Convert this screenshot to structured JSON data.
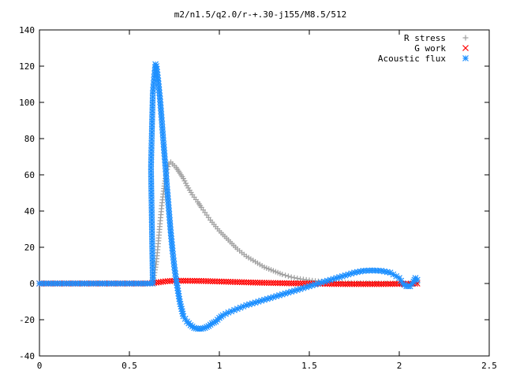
{
  "chart_data": {
    "type": "scatter",
    "title": "m2/n1.5/q2.0/r-+.30-j155/M8.5/512",
    "xlabel": "",
    "ylabel": "",
    "xlim": [
      0,
      2.5
    ],
    "ylim": [
      -40,
      140
    ],
    "xticks": [
      0,
      0.5,
      1,
      1.5,
      2,
      2.5
    ],
    "xtick_labels": [
      "0",
      "0.5",
      "1",
      "1.5",
      "2",
      "2.5"
    ],
    "yticks": [
      -40,
      -20,
      0,
      20,
      40,
      60,
      80,
      100,
      120,
      140
    ],
    "ytick_labels": [
      "-40",
      "-20",
      "0",
      "20",
      "40",
      "60",
      "80",
      "100",
      "120",
      "140"
    ],
    "grid": false,
    "legend_position": "top-right",
    "series": [
      {
        "name": "R stress",
        "color": "#a0a0a0",
        "marker": "plus",
        "points": [
          [
            0,
            0
          ],
          [
            0.05,
            0
          ],
          [
            0.1,
            0
          ],
          [
            0.15,
            0
          ],
          [
            0.2,
            0
          ],
          [
            0.25,
            0
          ],
          [
            0.3,
            0
          ],
          [
            0.35,
            0
          ],
          [
            0.4,
            0
          ],
          [
            0.45,
            0
          ],
          [
            0.5,
            0
          ],
          [
            0.55,
            0
          ],
          [
            0.6,
            0
          ],
          [
            0.63,
            0
          ],
          [
            0.64,
            6
          ],
          [
            0.65,
            12
          ],
          [
            0.66,
            22
          ],
          [
            0.67,
            33
          ],
          [
            0.68,
            43
          ],
          [
            0.69,
            51
          ],
          [
            0.7,
            58
          ],
          [
            0.71,
            63
          ],
          [
            0.72,
            66
          ],
          [
            0.73,
            67
          ],
          [
            0.74,
            66
          ],
          [
            0.76,
            64
          ],
          [
            0.78,
            61
          ],
          [
            0.8,
            58
          ],
          [
            0.82,
            54
          ],
          [
            0.85,
            49
          ],
          [
            0.88,
            45
          ],
          [
            0.9,
            42
          ],
          [
            0.95,
            35
          ],
          [
            1.0,
            29
          ],
          [
            1.05,
            24
          ],
          [
            1.1,
            19
          ],
          [
            1.15,
            15
          ],
          [
            1.2,
            12
          ],
          [
            1.25,
            9
          ],
          [
            1.3,
            7
          ],
          [
            1.35,
            5
          ],
          [
            1.4,
            3.5
          ],
          [
            1.45,
            2.5
          ],
          [
            1.5,
            1.8
          ],
          [
            1.55,
            1.2
          ],
          [
            1.6,
            0.8
          ],
          [
            1.7,
            0.4
          ],
          [
            1.8,
            0.2
          ],
          [
            1.9,
            0.1
          ],
          [
            2.0,
            0.05
          ],
          [
            2.1,
            0
          ]
        ]
      },
      {
        "name": "G work",
        "color": "#ff0000",
        "marker": "cross",
        "points": [
          [
            0,
            0
          ],
          [
            0.1,
            0
          ],
          [
            0.2,
            0
          ],
          [
            0.3,
            0
          ],
          [
            0.4,
            0
          ],
          [
            0.5,
            0
          ],
          [
            0.6,
            0
          ],
          [
            0.65,
            0.5
          ],
          [
            0.7,
            1.2
          ],
          [
            0.75,
            1.5
          ],
          [
            0.8,
            1.5
          ],
          [
            0.9,
            1.4
          ],
          [
            1.0,
            1.1
          ],
          [
            1.1,
            0.8
          ],
          [
            1.2,
            0.5
          ],
          [
            1.3,
            0.3
          ],
          [
            1.4,
            0.1
          ],
          [
            1.5,
            0
          ],
          [
            1.6,
            -0.2
          ],
          [
            1.7,
            -0.3
          ],
          [
            1.8,
            -0.3
          ],
          [
            1.9,
            -0.3
          ],
          [
            2.0,
            -0.2
          ],
          [
            2.05,
            -0.2
          ],
          [
            2.1,
            0
          ]
        ]
      },
      {
        "name": "Acoustic flux",
        "color": "#1e90ff",
        "marker": "star",
        "points": [
          [
            0,
            0
          ],
          [
            0.05,
            0
          ],
          [
            0.1,
            0
          ],
          [
            0.15,
            0
          ],
          [
            0.2,
            0
          ],
          [
            0.25,
            0
          ],
          [
            0.3,
            0
          ],
          [
            0.35,
            0
          ],
          [
            0.4,
            0
          ],
          [
            0.45,
            0
          ],
          [
            0.5,
            0
          ],
          [
            0.55,
            0
          ],
          [
            0.6,
            0
          ],
          [
            0.63,
            0
          ],
          [
            0.62,
            64
          ],
          [
            0.63,
            105
          ],
          [
            0.64,
            116
          ],
          [
            0.645,
            121
          ],
          [
            0.65,
            120
          ],
          [
            0.66,
            112
          ],
          [
            0.67,
            102
          ],
          [
            0.68,
            90
          ],
          [
            0.69,
            77
          ],
          [
            0.7,
            65
          ],
          [
            0.71,
            52
          ],
          [
            0.72,
            40
          ],
          [
            0.73,
            28
          ],
          [
            0.74,
            18
          ],
          [
            0.75,
            9
          ],
          [
            0.76,
            2
          ],
          [
            0.77,
            -4
          ],
          [
            0.78,
            -10
          ],
          [
            0.79,
            -14
          ],
          [
            0.8,
            -18
          ],
          [
            0.82,
            -21
          ],
          [
            0.84,
            -23
          ],
          [
            0.86,
            -24.5
          ],
          [
            0.88,
            -25
          ],
          [
            0.9,
            -25
          ],
          [
            0.92,
            -24.5
          ],
          [
            0.94,
            -23.5
          ],
          [
            0.96,
            -22
          ],
          [
            0.98,
            -21
          ],
          [
            1.0,
            -19
          ],
          [
            1.02,
            -17.5
          ],
          [
            1.05,
            -16
          ],
          [
            1.1,
            -14
          ],
          [
            1.15,
            -12
          ],
          [
            1.2,
            -10.5
          ],
          [
            1.25,
            -9
          ],
          [
            1.3,
            -7.5
          ],
          [
            1.35,
            -6
          ],
          [
            1.4,
            -4.5
          ],
          [
            1.45,
            -3
          ],
          [
            1.5,
            -1.5
          ],
          [
            1.55,
            0
          ],
          [
            1.6,
            1.5
          ],
          [
            1.65,
            3
          ],
          [
            1.7,
            4.5
          ],
          [
            1.75,
            6
          ],
          [
            1.8,
            7
          ],
          [
            1.85,
            7.2
          ],
          [
            1.9,
            7
          ],
          [
            1.95,
            6
          ],
          [
            2.0,
            3
          ],
          [
            2.02,
            0
          ],
          [
            2.04,
            -1.5
          ],
          [
            2.06,
            -1.5
          ],
          [
            2.08,
            1
          ],
          [
            2.09,
            3
          ],
          [
            2.1,
            2
          ]
        ]
      }
    ]
  }
}
